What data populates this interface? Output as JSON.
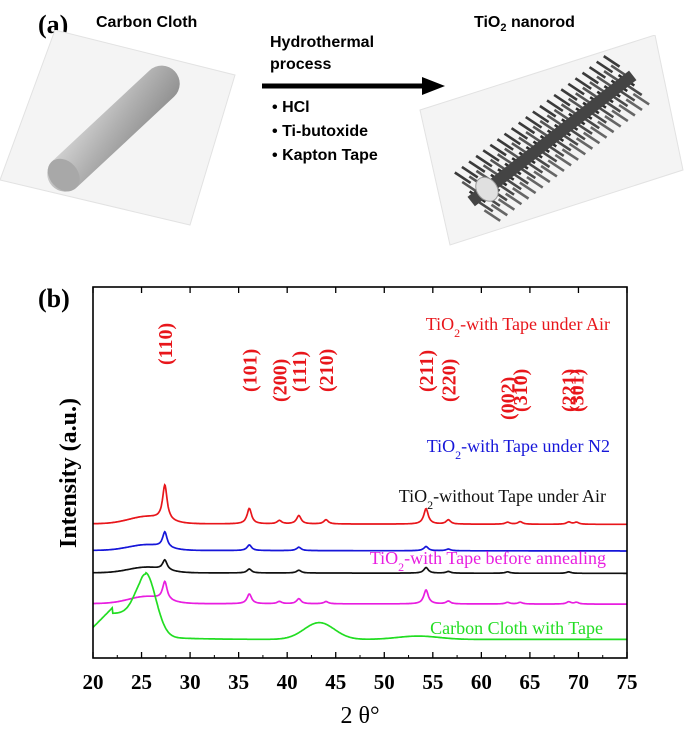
{
  "panel_a": {
    "label": "(a)",
    "carbon_title": "Carbon Cloth",
    "process_title_line1": "Hydrothermal",
    "process_title_line2": "process",
    "reagents": [
      "HCl",
      "Ti-butoxide",
      "Kapton Tape"
    ],
    "product_title_main": "TiO",
    "product_title_sub": "2",
    "product_title_rest": " nanorod",
    "bullet": "•"
  },
  "panel_b": {
    "label": "(b)"
  },
  "chart_data": {
    "type": "line",
    "xlabel": "2 θ°",
    "ylabel": "Intensity (a.u.)",
    "xlim": [
      20,
      75
    ],
    "xticks": [
      20,
      25,
      30,
      35,
      40,
      45,
      50,
      55,
      60,
      65,
      70,
      75
    ],
    "grid": false,
    "legend": "inline labels",
    "series": [
      {
        "name": "TiO2-with Tape under Air",
        "label_main": "TiO",
        "label_sub": "2",
        "label_rest": "-with Tape under Air",
        "color": "#e8161b",
        "offset": 4.15,
        "hump": 0.25,
        "peaks": [
          [
            27.4,
            1.25
          ],
          [
            36.1,
            0.55
          ],
          [
            39.2,
            0.12
          ],
          [
            41.2,
            0.3
          ],
          [
            44.0,
            0.15
          ],
          [
            54.3,
            0.55
          ],
          [
            56.6,
            0.15
          ],
          [
            62.7,
            0.07
          ],
          [
            64.0,
            0.09
          ],
          [
            69.0,
            0.08
          ],
          [
            69.8,
            0.07
          ]
        ]
      },
      {
        "name": "TiO2-with Tape under N2",
        "label_main": "TiO",
        "label_sub": "2",
        "label_rest": "-with Tape under N2",
        "color": "#1616d9",
        "offset": 3.2,
        "hump": 0.2,
        "peaks": [
          [
            27.4,
            0.55
          ],
          [
            36.1,
            0.2
          ],
          [
            41.2,
            0.12
          ],
          [
            54.3,
            0.15
          ],
          [
            56.6,
            0.06
          ]
        ]
      },
      {
        "name": "TiO2-without Tape under Air",
        "label_main": "TiO",
        "label_sub": "2",
        "label_rest": "-without Tape under Air",
        "color": "#111111",
        "offset": 2.4,
        "hump": 0.2,
        "peaks": [
          [
            27.4,
            0.35
          ],
          [
            36.1,
            0.14
          ],
          [
            41.2,
            0.1
          ],
          [
            54.3,
            0.2
          ],
          [
            56.6,
            0.06
          ],
          [
            62.7,
            0.05
          ],
          [
            69.0,
            0.05
          ]
        ]
      },
      {
        "name": "TiO2-with Tape before annealing",
        "label_main": "TiO",
        "label_sub": "2",
        "label_rest": "-with Tape before annealing",
        "color": "#e81ee0",
        "offset": 1.3,
        "hump": 0.25,
        "peaks": [
          [
            27.4,
            0.65
          ],
          [
            36.1,
            0.35
          ],
          [
            39.2,
            0.08
          ],
          [
            41.2,
            0.18
          ],
          [
            44.0,
            0.08
          ],
          [
            54.3,
            0.5
          ],
          [
            56.6,
            0.1
          ],
          [
            62.7,
            0.06
          ],
          [
            64.0,
            0.06
          ],
          [
            69.0,
            0.08
          ],
          [
            69.8,
            0.06
          ]
        ]
      },
      {
        "name": "Carbon Cloth with Tape",
        "label_main": "Carbon Cloth with Tape",
        "label_sub": "",
        "label_rest": "",
        "color": "#22dd22",
        "offset": 0.0,
        "type": "carbon"
      }
    ],
    "peak_labels": [
      {
        "text": "(110)",
        "x": 27.4
      },
      {
        "text": "(101)",
        "x": 36.1
      },
      {
        "text": "(200)",
        "x": 39.2
      },
      {
        "text": "(111)",
        "x": 41.2
      },
      {
        "text": "(210)",
        "x": 44.0
      },
      {
        "text": "(211)",
        "x": 54.3
      },
      {
        "text": "(220)",
        "x": 56.6
      },
      {
        "text": "(002)",
        "x": 62.7
      },
      {
        "text": "(310)",
        "x": 64.0
      },
      {
        "text": "(221)",
        "x": 69.0
      },
      {
        "text": "(301)",
        "x": 69.8
      }
    ]
  }
}
